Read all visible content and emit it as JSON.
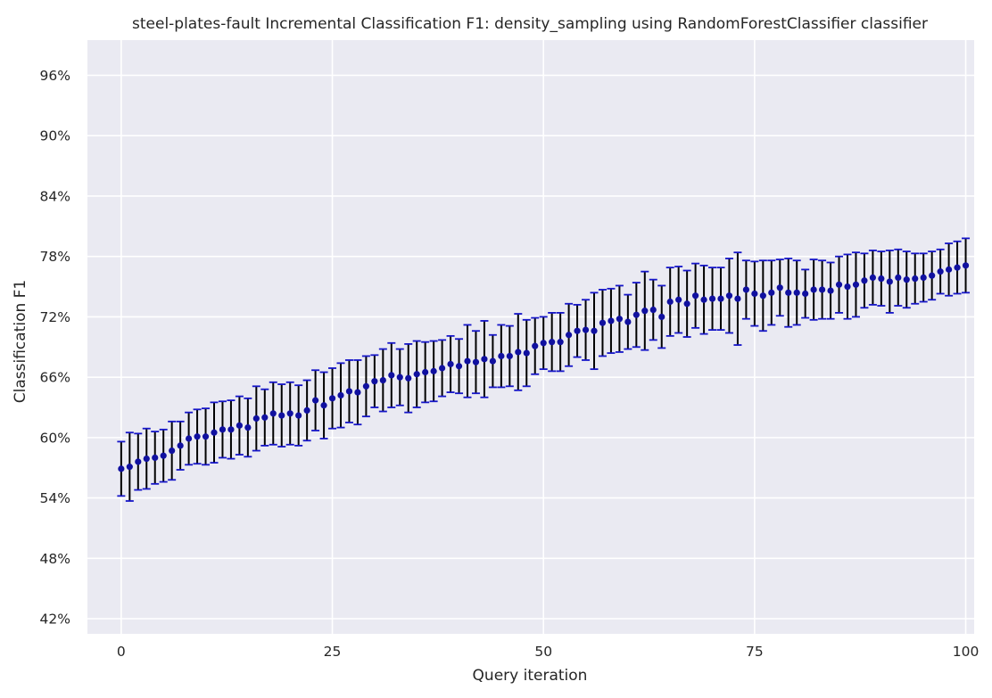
{
  "chart_data": {
    "type": "scatter",
    "title": "steel-plates-fault Incremental Classification F1: density_sampling using RandomForestClassifier classifier",
    "xlabel": "Query iteration",
    "ylabel": "Classification F1",
    "xlim": [
      -4,
      101
    ],
    "ylim": [
      40.5,
      99.5
    ],
    "x_ticks": [
      0,
      25,
      50,
      75,
      100
    ],
    "x_tick_labels": [
      "0",
      "25",
      "50",
      "75",
      "100"
    ],
    "y_ticks": [
      42,
      48,
      54,
      60,
      66,
      72,
      78,
      84,
      90,
      96
    ],
    "y_tick_labels": [
      "42%",
      "48%",
      "54%",
      "60%",
      "66%",
      "72%",
      "78%",
      "84%",
      "90%",
      "96%"
    ],
    "grid": true,
    "background_color": "#eaeaf2",
    "grid_color": "#ffffff",
    "marker_color": "#1010a0",
    "cap_color": "#1515c8",
    "errorbar_color": "#000000",
    "series": [
      {
        "x": [
          0,
          1,
          2,
          3,
          4,
          5,
          6,
          7,
          8,
          9,
          10,
          11,
          12,
          13,
          14,
          15,
          16,
          17,
          18,
          19,
          20,
          21,
          22,
          23,
          24,
          25,
          26,
          27,
          28,
          29,
          30,
          31,
          32,
          33,
          34,
          35,
          36,
          37,
          38,
          39,
          40,
          41,
          42,
          43,
          44,
          45,
          46,
          47,
          48,
          49,
          50,
          51,
          52,
          53,
          54,
          55,
          56,
          57,
          58,
          59,
          60,
          61,
          62,
          63,
          64,
          65,
          66,
          67,
          68,
          69,
          70,
          71,
          72,
          73,
          74,
          75,
          76,
          77,
          78,
          79,
          80,
          81,
          82,
          83,
          84,
          85,
          86,
          87,
          88,
          89,
          90,
          91,
          92,
          93,
          94,
          95,
          96,
          97,
          98,
          99,
          100
        ],
        "y": [
          56.9,
          57.1,
          57.6,
          57.9,
          58.0,
          58.2,
          58.7,
          59.2,
          59.9,
          60.1,
          60.1,
          60.5,
          60.8,
          60.8,
          61.2,
          61.0,
          61.9,
          62.0,
          62.4,
          62.2,
          62.4,
          62.2,
          62.7,
          63.7,
          63.2,
          63.9,
          64.2,
          64.6,
          64.5,
          65.1,
          65.6,
          65.7,
          66.2,
          66.0,
          65.9,
          66.3,
          66.5,
          66.6,
          66.9,
          67.3,
          67.1,
          67.6,
          67.5,
          67.8,
          67.6,
          68.1,
          68.1,
          68.5,
          68.4,
          69.1,
          69.4,
          69.5,
          69.5,
          70.2,
          70.6,
          70.7,
          70.6,
          71.4,
          71.6,
          71.8,
          71.5,
          72.2,
          72.6,
          72.7,
          72.0,
          73.5,
          73.7,
          73.3,
          74.1,
          73.7,
          73.8,
          73.8,
          74.1,
          73.8,
          74.7,
          74.3,
          74.1,
          74.4,
          74.9,
          74.4,
          74.4,
          74.3,
          74.7,
          74.7,
          74.6,
          75.2,
          75.0,
          75.2,
          75.6,
          75.9,
          75.8,
          75.5,
          75.9,
          75.7,
          75.8,
          75.9,
          76.1,
          76.5,
          76.7,
          76.9,
          77.1
        ],
        "yerr": [
          2.7,
          3.4,
          2.8,
          3.0,
          2.6,
          2.6,
          2.9,
          2.4,
          2.6,
          2.7,
          2.8,
          3.0,
          2.8,
          2.9,
          2.9,
          2.9,
          3.2,
          2.8,
          3.1,
          3.1,
          3.1,
          3.0,
          3.0,
          3.0,
          3.3,
          3.0,
          3.2,
          3.1,
          3.2,
          3.0,
          2.6,
          3.1,
          3.2,
          2.8,
          3.4,
          3.3,
          3.0,
          3.0,
          2.8,
          2.8,
          2.7,
          3.6,
          3.1,
          3.8,
          2.6,
          3.1,
          3.0,
          3.8,
          3.3,
          2.8,
          2.6,
          2.9,
          2.9,
          3.1,
          2.6,
          3.0,
          3.8,
          3.3,
          3.2,
          3.3,
          2.7,
          3.2,
          3.9,
          3.0,
          3.1,
          3.4,
          3.3,
          3.3,
          3.2,
          3.4,
          3.1,
          3.1,
          3.7,
          4.6,
          2.9,
          3.2,
          3.5,
          3.2,
          2.8,
          3.4,
          3.2,
          2.4,
          3.0,
          2.9,
          2.8,
          2.8,
          3.2,
          3.2,
          2.7,
          2.7,
          2.7,
          3.1,
          2.8,
          2.8,
          2.5,
          2.4,
          2.4,
          2.2,
          2.6,
          2.6,
          2.7
        ]
      }
    ]
  }
}
